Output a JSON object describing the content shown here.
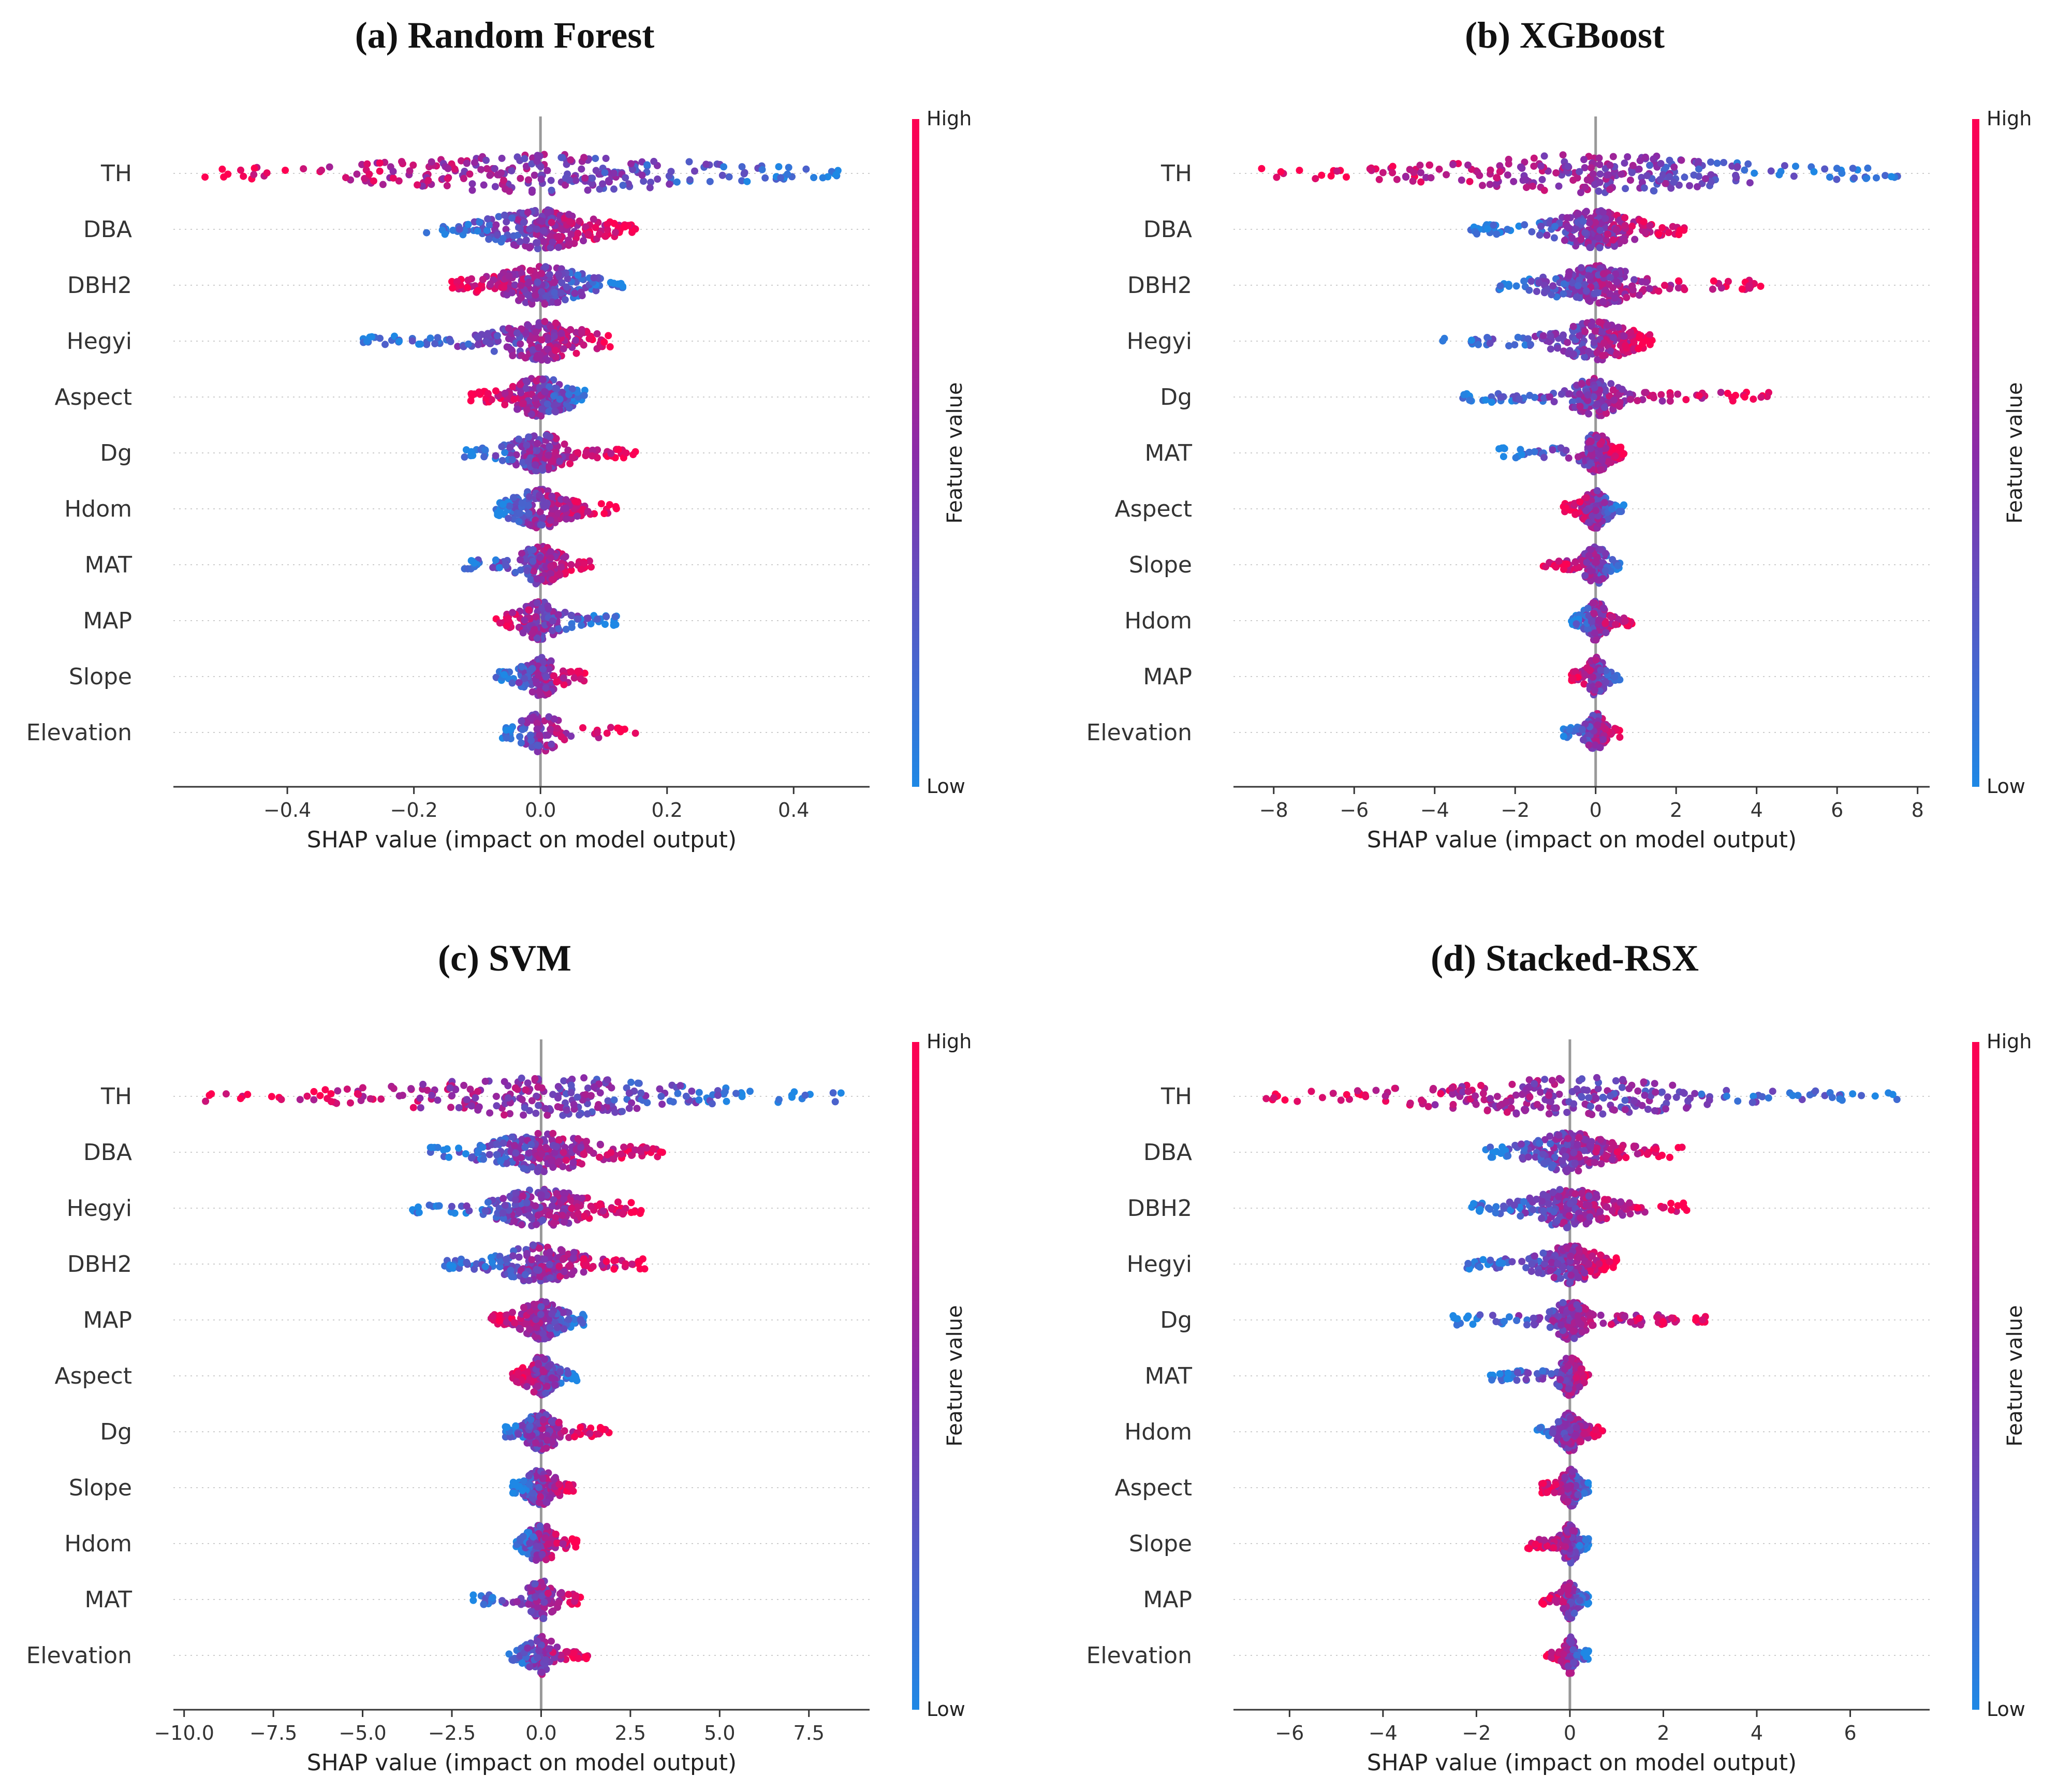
{
  "figure": {
    "x_axis_label": "SHAP value (impact on model output)",
    "colorbar": {
      "title": "Feature value",
      "high_label": "High",
      "low_label": "Low",
      "high_color": "#ff0051",
      "mid_color": "#8a2ba8",
      "low_color": "#1e88e5"
    }
  },
  "chart_data": [
    {
      "type": "scatter",
      "subtype": "shap-beeswarm",
      "title": "(a) Random Forest",
      "xlabel": "SHAP value (impact on model output)",
      "xlim": [
        -0.58,
        0.52
      ],
      "xticks": [
        -0.4,
        -0.2,
        0.0,
        0.2,
        0.4
      ],
      "xtick_labels": [
        "−0.4",
        "−0.2",
        "0.0",
        "0.2",
        "0.4"
      ],
      "features": [
        {
          "name": "TH",
          "min": -0.53,
          "max": 0.47,
          "lowSide": "pos",
          "spread": 0.22
        },
        {
          "name": "DBA",
          "min": -0.18,
          "max": 0.15,
          "lowSide": "neg",
          "spread": 0.07
        },
        {
          "name": "DBH2",
          "min": -0.14,
          "max": 0.13,
          "lowSide": "pos",
          "spread": 0.06
        },
        {
          "name": "Hegyi",
          "min": -0.28,
          "max": 0.11,
          "lowSide": "neg",
          "spread": 0.06
        },
        {
          "name": "Aspect",
          "min": -0.11,
          "max": 0.07,
          "lowSide": "pos",
          "spread": 0.04
        },
        {
          "name": "Dg",
          "min": -0.12,
          "max": 0.15,
          "lowSide": "neg",
          "spread": 0.04
        },
        {
          "name": "Hdom",
          "min": -0.07,
          "max": 0.12,
          "lowSide": "neg",
          "spread": 0.04
        },
        {
          "name": "MAT",
          "min": -0.12,
          "max": 0.08,
          "lowSide": "neg",
          "spread": 0.03
        },
        {
          "name": "MAP",
          "min": -0.07,
          "max": 0.12,
          "lowSide": "pos",
          "spread": 0.03
        },
        {
          "name": "Slope",
          "min": -0.07,
          "max": 0.07,
          "lowSide": "neg",
          "spread": 0.025
        },
        {
          "name": "Elevation",
          "min": -0.06,
          "max": 0.15,
          "lowSide": "neg",
          "spread": 0.03
        }
      ]
    },
    {
      "type": "scatter",
      "subtype": "shap-beeswarm",
      "title": "(b) XGBoost",
      "xlabel": "SHAP value (impact on model output)",
      "xlim": [
        -9.0,
        8.3
      ],
      "xticks": [
        -8,
        -6,
        -4,
        -2,
        0,
        2,
        4,
        6,
        8
      ],
      "xtick_labels": [
        "−8",
        "−6",
        "−4",
        "−2",
        "0",
        "2",
        "4",
        "6",
        "8"
      ],
      "features": [
        {
          "name": "TH",
          "min": -8.3,
          "max": 7.5,
          "lowSide": "pos",
          "spread": 3.0
        },
        {
          "name": "DBA",
          "min": -3.1,
          "max": 2.2,
          "lowSide": "neg",
          "spread": 0.9
        },
        {
          "name": "DBH2",
          "min": -2.4,
          "max": 4.1,
          "lowSide": "neg",
          "spread": 0.9
        },
        {
          "name": "Hegyi",
          "min": -3.8,
          "max": 1.4,
          "lowSide": "neg",
          "spread": 0.8
        },
        {
          "name": "Dg",
          "min": -3.3,
          "max": 4.3,
          "lowSide": "neg",
          "spread": 0.5
        },
        {
          "name": "MAT",
          "min": -2.4,
          "max": 0.7,
          "lowSide": "neg",
          "spread": 0.3
        },
        {
          "name": "Aspect",
          "min": -0.8,
          "max": 0.7,
          "lowSide": "pos",
          "spread": 0.25
        },
        {
          "name": "Slope",
          "min": -1.3,
          "max": 0.6,
          "lowSide": "pos",
          "spread": 0.25
        },
        {
          "name": "Hdom",
          "min": -0.6,
          "max": 0.9,
          "lowSide": "neg",
          "spread": 0.25
        },
        {
          "name": "MAP",
          "min": -0.6,
          "max": 0.6,
          "lowSide": "pos",
          "spread": 0.2
        },
        {
          "name": "Elevation",
          "min": -0.8,
          "max": 0.6,
          "lowSide": "neg",
          "spread": 0.2
        }
      ]
    },
    {
      "type": "scatter",
      "subtype": "shap-beeswarm",
      "title": "(c) SVM",
      "xlabel": "SHAP value (impact on model output)",
      "xlim": [
        -10.3,
        9.2
      ],
      "xticks": [
        -10.0,
        -7.5,
        -5.0,
        -2.5,
        0.0,
        2.5,
        5.0,
        7.5
      ],
      "xtick_labels": [
        "−10.0",
        "−7.5",
        "−5.0",
        "−2.5",
        "0.0",
        "2.5",
        "5.0",
        "7.5"
      ],
      "features": [
        {
          "name": "TH",
          "min": -9.4,
          "max": 8.4,
          "lowSide": "pos",
          "spread": 3.5
        },
        {
          "name": "DBA",
          "min": -3.1,
          "max": 3.4,
          "lowSide": "neg",
          "spread": 1.2
        },
        {
          "name": "Hegyi",
          "min": -3.6,
          "max": 2.8,
          "lowSide": "neg",
          "spread": 1.1
        },
        {
          "name": "DBH2",
          "min": -2.7,
          "max": 2.9,
          "lowSide": "neg",
          "spread": 0.9
        },
        {
          "name": "MAP",
          "min": -1.4,
          "max": 1.2,
          "lowSide": "pos",
          "spread": 0.5
        },
        {
          "name": "Aspect",
          "min": -0.8,
          "max": 1.0,
          "lowSide": "pos",
          "spread": 0.35
        },
        {
          "name": "Dg",
          "min": -1.0,
          "max": 1.9,
          "lowSide": "neg",
          "spread": 0.4
        },
        {
          "name": "Slope",
          "min": -0.8,
          "max": 0.9,
          "lowSide": "neg",
          "spread": 0.35
        },
        {
          "name": "Hdom",
          "min": -0.7,
          "max": 1.0,
          "lowSide": "neg",
          "spread": 0.35
        },
        {
          "name": "MAT",
          "min": -1.9,
          "max": 1.1,
          "lowSide": "neg",
          "spread": 0.35
        },
        {
          "name": "Elevation",
          "min": -0.9,
          "max": 1.3,
          "lowSide": "neg",
          "spread": 0.35
        }
      ]
    },
    {
      "type": "scatter",
      "subtype": "shap-beeswarm",
      "title": "(d) Stacked-RSX",
      "xlabel": "SHAP value (impact on model output)",
      "xlim": [
        -7.2,
        7.7
      ],
      "xticks": [
        -6,
        -4,
        -2,
        0,
        2,
        4,
        6
      ],
      "xtick_labels": [
        "−6",
        "−4",
        "−2",
        "0",
        "2",
        "4",
        "6"
      ],
      "features": [
        {
          "name": "TH",
          "min": -6.5,
          "max": 7.0,
          "lowSide": "pos",
          "spread": 2.5
        },
        {
          "name": "DBA",
          "min": -1.8,
          "max": 2.4,
          "lowSide": "neg",
          "spread": 0.7
        },
        {
          "name": "DBH2",
          "min": -2.1,
          "max": 2.5,
          "lowSide": "neg",
          "spread": 0.7
        },
        {
          "name": "Hegyi",
          "min": -2.2,
          "max": 1.0,
          "lowSide": "neg",
          "spread": 0.5
        },
        {
          "name": "Dg",
          "min": -2.5,
          "max": 2.9,
          "lowSide": "neg",
          "spread": 0.3
        },
        {
          "name": "MAT",
          "min": -1.7,
          "max": 0.4,
          "lowSide": "neg",
          "spread": 0.2
        },
        {
          "name": "Hdom",
          "min": -0.7,
          "max": 0.7,
          "lowSide": "neg",
          "spread": 0.2
        },
        {
          "name": "Aspect",
          "min": -0.6,
          "max": 0.4,
          "lowSide": "pos",
          "spread": 0.15
        },
        {
          "name": "Slope",
          "min": -0.9,
          "max": 0.4,
          "lowSide": "pos",
          "spread": 0.15
        },
        {
          "name": "MAP",
          "min": -0.6,
          "max": 0.4,
          "lowSide": "pos",
          "spread": 0.12
        },
        {
          "name": "Elevation",
          "min": -0.5,
          "max": 0.4,
          "lowSide": "pos",
          "spread": 0.1
        }
      ]
    }
  ]
}
